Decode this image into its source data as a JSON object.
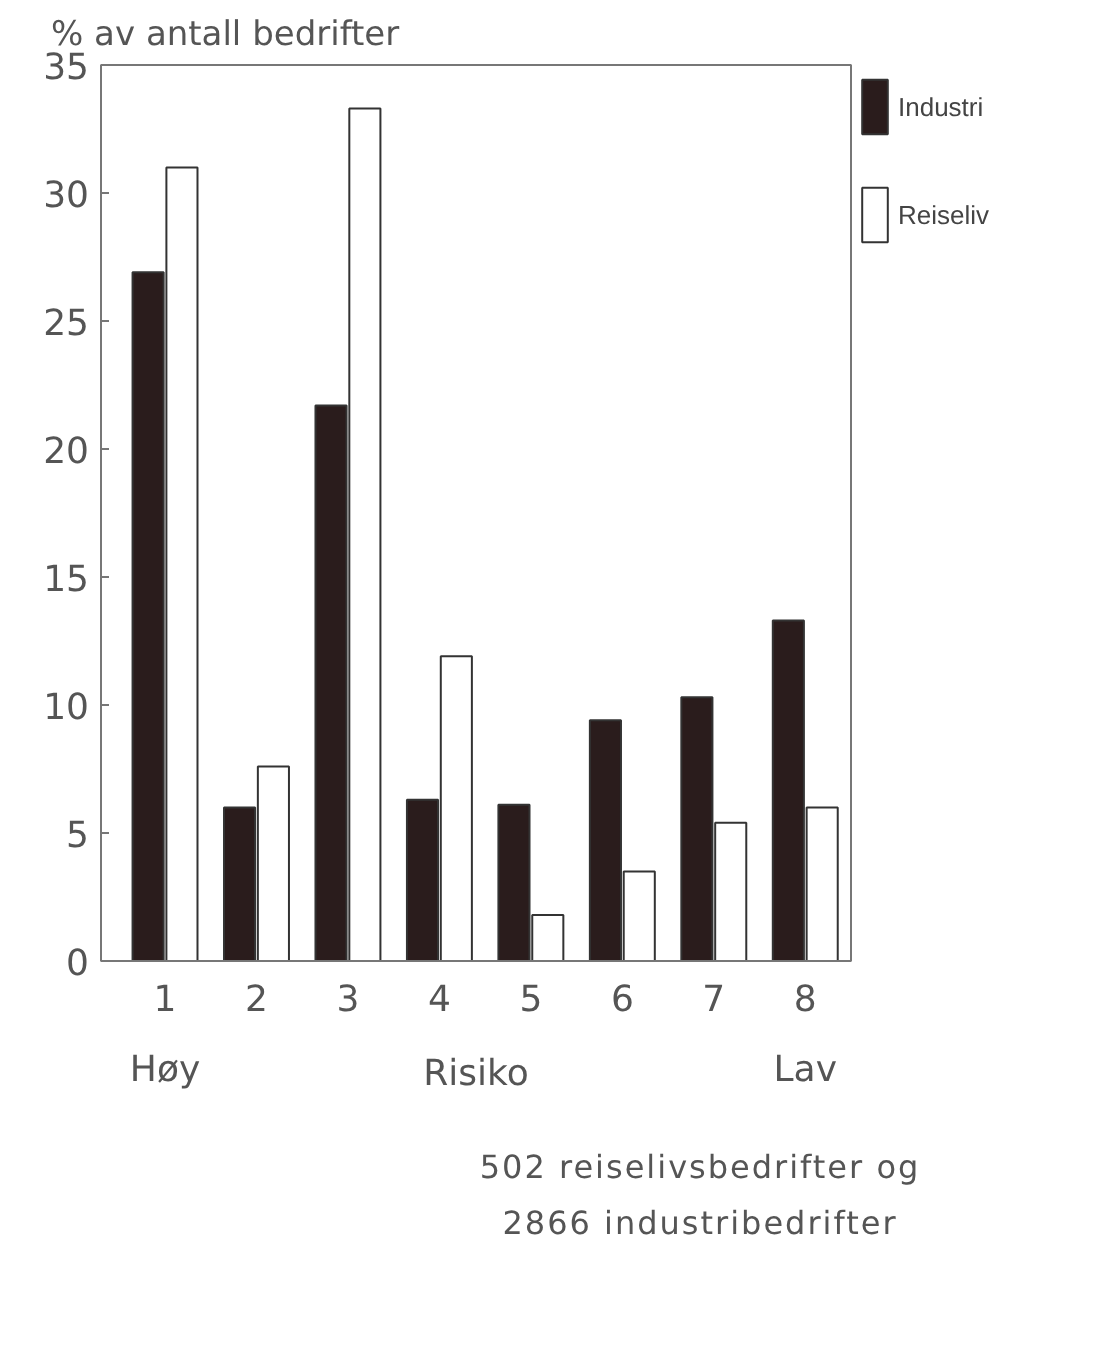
{
  "chart_data": {
    "type": "bar",
    "title": "% av antall bedrifter",
    "xlabel": "Risiko",
    "categories": [
      "1",
      "2",
      "3",
      "4",
      "5",
      "6",
      "7",
      "8"
    ],
    "series": [
      {
        "name": "Industri",
        "color": "#2a1c1c",
        "values": [
          26.9,
          6.0,
          21.7,
          6.3,
          6.1,
          9.4,
          10.3,
          13.3
        ]
      },
      {
        "name": "Reiseliv",
        "color": "#ffffff",
        "values": [
          31.0,
          7.6,
          33.3,
          11.9,
          1.8,
          3.5,
          5.4,
          6.0
        ]
      }
    ],
    "ylim": [
      0,
      35
    ],
    "yticks": [
      0,
      5,
      10,
      15,
      20,
      25,
      30,
      35
    ],
    "grid": false,
    "legend": "top right",
    "annotations": [
      "Høy",
      "Lav",
      "502 reiselivsbedrifter og\n2866 industribedrifter"
    ]
  }
}
